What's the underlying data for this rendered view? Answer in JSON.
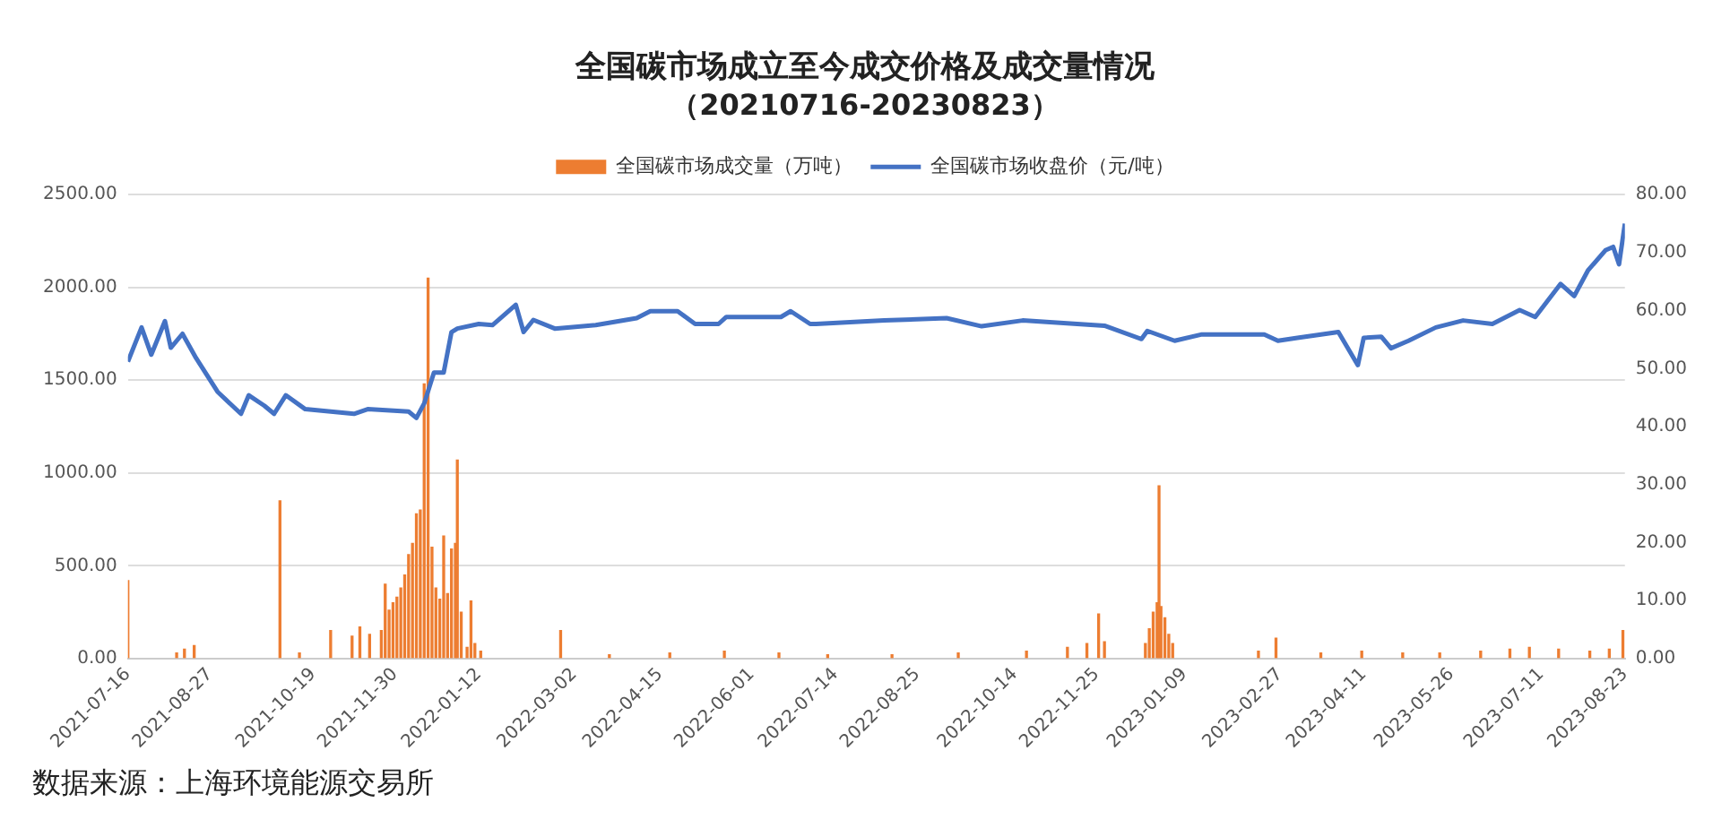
{
  "chart_data": {
    "type": "bar",
    "title": "全国碳市场成立至今成交价格及成交量情况",
    "subtitle": "（20210716-20230823）",
    "annotations": [
      "数据来源：上海环境能源交易所"
    ],
    "legend": "top",
    "grid": "y",
    "marker": "none",
    "line_style": "solid",
    "xlim": [
      "2021-07-16",
      "2023-08-23"
    ],
    "xticks": [
      "2021-07-16",
      "2021-08-27",
      "2021-10-19",
      "2021-11-30",
      "2022-01-12",
      "2022-03-02",
      "2022-04-15",
      "2022-06-01",
      "2022-07-14",
      "2022-08-25",
      "2022-10-14",
      "2022-11-25",
      "2023-01-09",
      "2023-02-27",
      "2023-04-11",
      "2023-05-26",
      "2023-07-11",
      "2023-08-23"
    ],
    "ylim": [
      0,
      2500
    ],
    "yticks": [
      {
        "value": 0,
        "label": "0.00"
      },
      {
        "value": 500,
        "label": "500.00"
      },
      {
        "value": 1000,
        "label": "1000.00"
      },
      {
        "value": 1500,
        "label": "1500.00"
      },
      {
        "value": 2000,
        "label": "2000.00"
      },
      {
        "value": 2500,
        "label": "2500.00"
      }
    ],
    "y2lim": [
      0,
      80
    ],
    "y2ticks": [
      {
        "value": 0,
        "label": "0.00"
      },
      {
        "value": 10,
        "label": "10.00"
      },
      {
        "value": 20,
        "label": "20.00"
      },
      {
        "value": 30,
        "label": "30.00"
      },
      {
        "value": 40,
        "label": "40.00"
      },
      {
        "value": 50,
        "label": "50.00"
      },
      {
        "value": 60,
        "label": "60.00"
      },
      {
        "value": 70,
        "label": "70.00"
      },
      {
        "value": 80,
        "label": "80.00"
      }
    ],
    "series": [
      {
        "name": "全国碳市场成交量（万吨）",
        "color": "#ed7d31",
        "x": [
          "2021-07-16",
          "2021-08-10",
          "2021-08-14",
          "2021-08-19",
          "2021-10-02",
          "2021-10-12",
          "2021-10-28",
          "2021-11-08",
          "2021-11-12",
          "2021-11-17",
          "2021-11-23",
          "2021-11-25",
          "2021-11-27",
          "2021-11-29",
          "2021-12-01",
          "2021-12-03",
          "2021-12-05",
          "2021-12-07",
          "2021-12-09",
          "2021-12-11",
          "2021-12-13",
          "2021-12-15",
          "2021-12-17",
          "2021-12-19",
          "2021-12-21",
          "2021-12-23",
          "2021-12-25",
          "2021-12-27",
          "2021-12-29",
          "2021-12-31",
          "2022-01-01",
          "2022-01-03",
          "2022-01-06",
          "2022-01-08",
          "2022-01-10",
          "2022-01-13",
          "2022-02-23",
          "2022-03-20",
          "2022-04-20",
          "2022-05-18",
          "2022-06-15",
          "2022-07-10",
          "2022-08-12",
          "2022-09-15",
          "2022-10-20",
          "2022-11-10",
          "2022-11-20",
          "2022-11-26",
          "2022-11-29",
          "2022-12-20",
          "2022-12-22",
          "2022-12-24",
          "2022-12-26",
          "2022-12-27",
          "2022-12-28",
          "2022-12-30",
          "2023-01-01",
          "2023-01-03",
          "2023-02-16",
          "2023-02-25",
          "2023-03-20",
          "2023-04-10",
          "2023-05-01",
          "2023-05-20",
          "2023-06-10",
          "2023-06-25",
          "2023-07-05",
          "2023-07-20",
          "2023-08-05",
          "2023-08-15",
          "2023-08-22"
        ],
        "values": [
          420,
          30,
          50,
          70,
          850,
          30,
          150,
          120,
          170,
          130,
          150,
          400,
          260,
          300,
          330,
          380,
          450,
          560,
          620,
          780,
          800,
          1480,
          2050,
          600,
          380,
          320,
          660,
          350,
          590,
          620,
          1070,
          250,
          60,
          310,
          80,
          40,
          150,
          20,
          30,
          40,
          30,
          20,
          20,
          30,
          40,
          60,
          80,
          240,
          90,
          80,
          160,
          250,
          300,
          930,
          280,
          220,
          130,
          80,
          40,
          110,
          30,
          40,
          30,
          30,
          40,
          50,
          60,
          50,
          40,
          50,
          150
        ]
      },
      {
        "name": "全国碳市场收盘价（元/吨）",
        "type": "line",
        "axis": "y2",
        "color": "#4472c4",
        "x": [
          "2021-07-16",
          "2021-07-23",
          "2021-07-28",
          "2021-08-04",
          "2021-08-07",
          "2021-08-13",
          "2021-08-20",
          "2021-08-31",
          "2021-09-12",
          "2021-09-16",
          "2021-09-24",
          "2021-09-29",
          "2021-10-05",
          "2021-10-15",
          "2021-11-09",
          "2021-11-16",
          "2021-12-07",
          "2021-12-11",
          "2021-12-15",
          "2021-12-20",
          "2021-12-25",
          "2021-12-29",
          "2022-01-01",
          "2022-01-12",
          "2022-01-19",
          "2022-01-31",
          "2022-02-04",
          "2022-02-09",
          "2022-02-20",
          "2022-03-13",
          "2022-04-03",
          "2022-04-10",
          "2022-04-24",
          "2022-05-03",
          "2022-05-15",
          "2022-05-19",
          "2022-06-16",
          "2022-06-21",
          "2022-07-01",
          "2022-07-04",
          "2022-08-08",
          "2022-09-09",
          "2022-09-27",
          "2022-10-18",
          "2022-11-29",
          "2022-12-18",
          "2022-12-21",
          "2023-01-04",
          "2023-01-18",
          "2023-02-19",
          "2023-02-26",
          "2023-03-08",
          "2023-03-29",
          "2023-04-08",
          "2023-04-11",
          "2023-04-20",
          "2023-04-25",
          "2023-05-04",
          "2023-05-18",
          "2023-06-01",
          "2023-06-16",
          "2023-06-30",
          "2023-07-08",
          "2023-07-21",
          "2023-07-28",
          "2023-08-04",
          "2023-08-13",
          "2023-08-17",
          "2023-08-20",
          "2023-08-23"
        ],
        "values": [
          51.2,
          57.1,
          52.4,
          58.2,
          53.6,
          56,
          51.8,
          46,
          42.2,
          45.4,
          43.6,
          42.2,
          45.4,
          43,
          42.2,
          43,
          42.6,
          41.5,
          44,
          49.3,
          49.3,
          56.3,
          56.9,
          57.7,
          57.5,
          61,
          56.3,
          58.4,
          56.9,
          57.5,
          58.7,
          59.9,
          59.9,
          57.7,
          57.7,
          58.9,
          58.9,
          59.9,
          57.7,
          57.7,
          58.3,
          58.7,
          57.3,
          58.3,
          57.4,
          55.1,
          56.5,
          54.8,
          55.9,
          55.9,
          54.8,
          55.3,
          56.3,
          50.6,
          55.3,
          55.5,
          53.5,
          54.8,
          57.1,
          58.3,
          57.7,
          60.1,
          58.9,
          64.6,
          62.5,
          66.9,
          70.4,
          71,
          68,
          75
        ]
      }
    ]
  }
}
